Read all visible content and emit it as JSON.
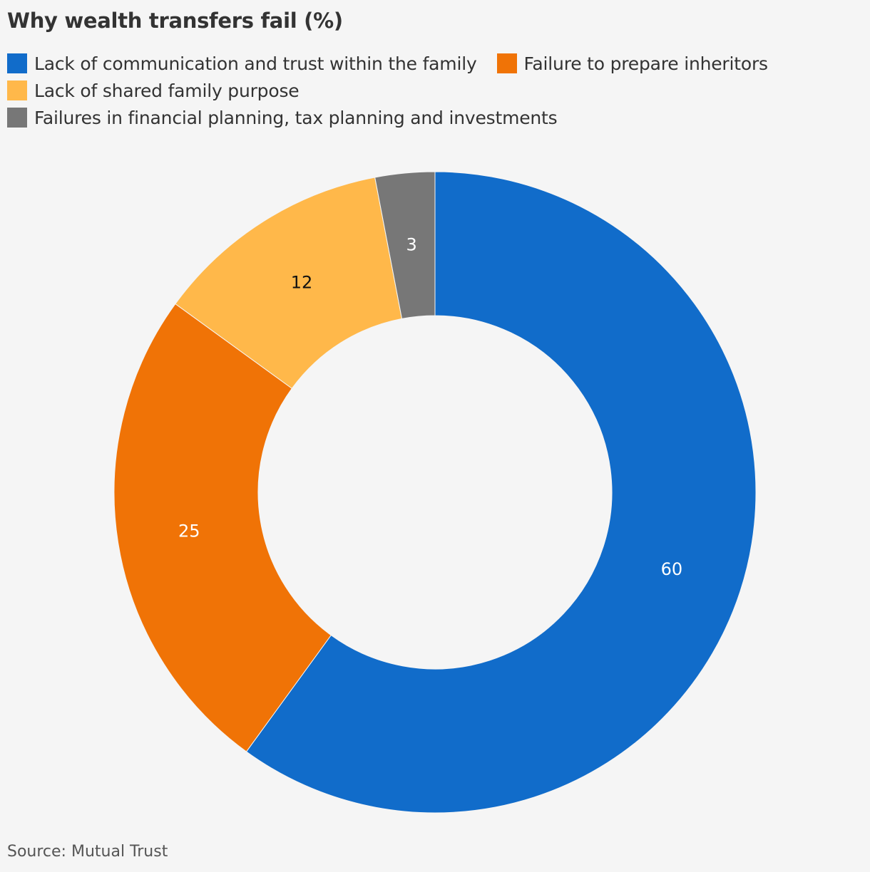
{
  "title": "Why wealth transfers fail (%)",
  "source": "Source: Mutual Trust",
  "chart_data": {
    "type": "pie",
    "variant": "donut",
    "title": "Why wealth transfers fail (%)",
    "legend_position": "top-left",
    "categories": [
      "Lack of communication and trust within the family",
      "Failure to prepare inheritors",
      "Lack of shared family purpose",
      "Failures in financial planning, tax planning and investments"
    ],
    "values": [
      60,
      25,
      12,
      3
    ],
    "colors": [
      "#116cca",
      "#f07306",
      "#ffb84a",
      "#777777"
    ],
    "label_colors": [
      "#ffffff",
      "#ffffff",
      "#111111",
      "#ffffff"
    ]
  }
}
